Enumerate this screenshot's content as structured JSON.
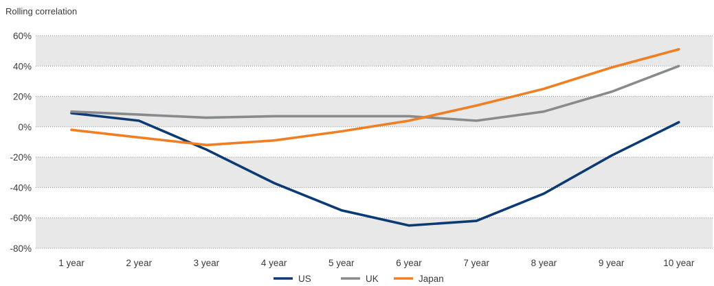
{
  "chart_data": {
    "type": "line",
    "title": "",
    "ylabel": "Rolling correlation",
    "xlabel": "",
    "categories": [
      "1 year",
      "2 year",
      "3 year",
      "4 year",
      "5 year",
      "6 year",
      "7 year",
      "8 year",
      "9 year",
      "10 year"
    ],
    "ylim": [
      -80,
      60
    ],
    "yticks": [
      60,
      40,
      20,
      0,
      -20,
      -40,
      -60,
      -80
    ],
    "ytick_labels": [
      "60%",
      "40%",
      "20%",
      "0%",
      "-20%",
      "-40%",
      "-60%",
      "-80%"
    ],
    "grid": true,
    "alternating_bands": true,
    "legend_position": "bottom-center",
    "series": [
      {
        "name": "US",
        "color": "#0c3a73",
        "values": [
          9,
          4,
          -15,
          -37,
          -55,
          -65,
          -62,
          -44,
          -19,
          3
        ]
      },
      {
        "name": "UK",
        "color": "#888b8d",
        "values": [
          10,
          8,
          6,
          7,
          7,
          7,
          4,
          10,
          23,
          40
        ]
      },
      {
        "name": "Japan",
        "color": "#f07f24",
        "values": [
          -2,
          -7,
          -12,
          -9,
          -3,
          4,
          14,
          25,
          39,
          51
        ]
      }
    ]
  }
}
